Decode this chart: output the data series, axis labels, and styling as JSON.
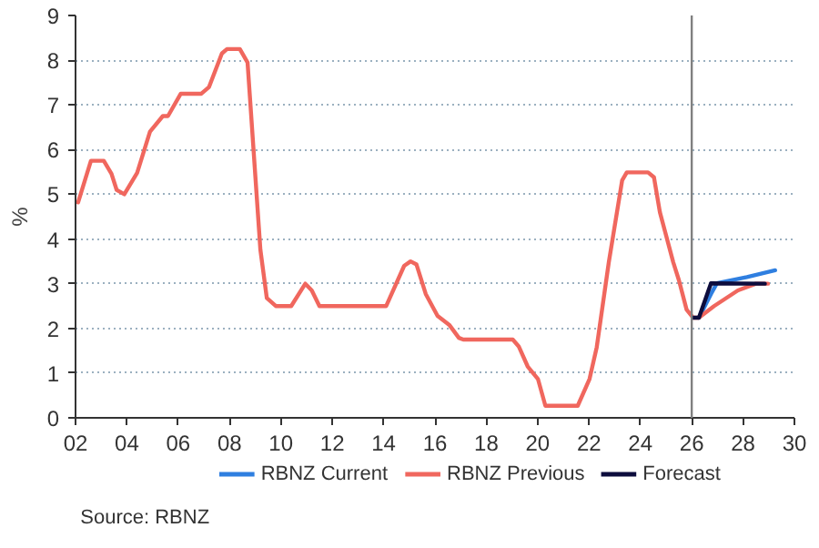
{
  "chart_data": {
    "type": "line",
    "ylabel": "%",
    "annotations": [
      "Source: RBNZ"
    ],
    "xlim": [
      2002,
      2030
    ],
    "ylim": [
      0,
      9
    ],
    "xticks": [
      {
        "value": 2002,
        "label": "02"
      },
      {
        "value": 2004,
        "label": "04"
      },
      {
        "value": 2006,
        "label": "06"
      },
      {
        "value": 2008,
        "label": "08"
      },
      {
        "value": 2010,
        "label": "10"
      },
      {
        "value": 2012,
        "label": "12"
      },
      {
        "value": 2014,
        "label": "14"
      },
      {
        "value": 2016,
        "label": "16"
      },
      {
        "value": 2018,
        "label": "18"
      },
      {
        "value": 2020,
        "label": "20"
      },
      {
        "value": 2022,
        "label": "22"
      },
      {
        "value": 2024,
        "label": "24"
      },
      {
        "value": 2026,
        "label": "26"
      },
      {
        "value": 2028,
        "label": "28"
      },
      {
        "value": 2030,
        "label": "30"
      }
    ],
    "yticks": [
      0,
      1,
      2,
      3,
      4,
      5,
      6,
      7,
      8,
      9
    ],
    "grid": "y",
    "legend": "bottom",
    "line_style": "solid",
    "ref_lines": [
      {
        "axis": "x",
        "value": 2026,
        "color": "#808080"
      }
    ],
    "series": [
      {
        "name": "RBNZ Current",
        "color": "#2f7fe0",
        "x": [
          2026.28,
          2026.75,
          2026.98,
          2028.15,
          2029.25
        ],
        "values": [
          2.24,
          2.77,
          3.01,
          3.15,
          3.3
        ]
      },
      {
        "name": "RBNZ Previous",
        "color": "#f0675e",
        "x": [
          2002.1,
          2002.6,
          2003.1,
          2003.4,
          2003.6,
          2003.9,
          2004.4,
          2004.9,
          2005.4,
          2005.6,
          2006.1,
          2006.9,
          2007.2,
          2007.7,
          2007.9,
          2008.4,
          2008.7,
          2009.2,
          2009.45,
          2009.8,
          2010.4,
          2010.95,
          2011.2,
          2011.5,
          2014.1,
          2014.8,
          2015.05,
          2015.28,
          2015.64,
          2016.1,
          2016.57,
          2016.93,
          2017.1,
          2019.03,
          2019.26,
          2019.61,
          2020.01,
          2020.3,
          2021.56,
          2022.02,
          2022.3,
          2022.77,
          2023.29,
          2023.47,
          2024.3,
          2024.53,
          2024.76,
          2025.28,
          2025.5,
          2025.8,
          2026.05,
          2026.28,
          2026.87,
          2027.8,
          2028.5,
          2028.97
        ],
        "values": [
          4.82,
          5.75,
          5.75,
          5.46,
          5.1,
          5.0,
          5.48,
          6.4,
          6.75,
          6.75,
          7.25,
          7.25,
          7.4,
          8.15,
          8.25,
          8.25,
          7.95,
          3.76,
          2.68,
          2.5,
          2.5,
          3.0,
          2.85,
          2.5,
          2.5,
          3.4,
          3.5,
          3.43,
          2.77,
          2.28,
          2.07,
          1.79,
          1.75,
          1.75,
          1.6,
          1.15,
          0.87,
          0.27,
          0.27,
          0.87,
          1.58,
          3.48,
          5.31,
          5.49,
          5.49,
          5.38,
          4.6,
          3.48,
          3.08,
          2.42,
          2.24,
          2.24,
          2.5,
          2.85,
          3.0,
          3.0
        ]
      },
      {
        "name": "Forecast",
        "color": "#0d0d3d",
        "x": [
          2026.05,
          2026.28,
          2026.75,
          2028.85
        ],
        "values": [
          2.24,
          2.24,
          3.01,
          3.0
        ]
      }
    ]
  }
}
